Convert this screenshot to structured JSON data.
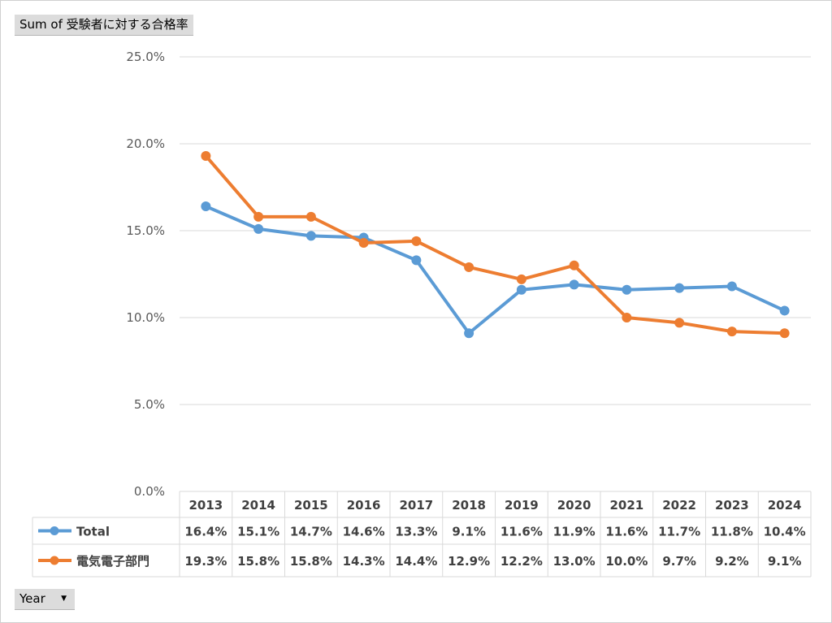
{
  "pivot": {
    "value_field": "Sum of 受験者に対する合格率",
    "axis_field": "Year",
    "dropdown_icon": "dropdown-arrow-icon"
  },
  "chart_data": {
    "type": "line",
    "x": [
      "2013",
      "2014",
      "2015",
      "2016",
      "2017",
      "2018",
      "2019",
      "2020",
      "2021",
      "2022",
      "2023",
      "2024"
    ],
    "ylim": [
      0,
      25
    ],
    "y_ticks": [
      "0.0%",
      "5.0%",
      "10.0%",
      "15.0%",
      "20.0%",
      "25.0%"
    ],
    "grid": true,
    "legend": "data-table",
    "series": [
      {
        "name": "Total",
        "color": "#5B9BD5",
        "values": [
          16.4,
          15.1,
          14.7,
          14.6,
          13.3,
          9.1,
          11.6,
          11.9,
          11.6,
          11.7,
          11.8,
          10.4
        ],
        "labels": [
          "16.4%",
          "15.1%",
          "14.7%",
          "14.6%",
          "13.3%",
          "9.1%",
          "11.6%",
          "11.9%",
          "11.6%",
          "11.7%",
          "11.8%",
          "10.4%"
        ]
      },
      {
        "name": "電気電子部門",
        "color": "#ED7D31",
        "values": [
          19.3,
          15.8,
          15.8,
          14.3,
          14.4,
          12.9,
          12.2,
          13.0,
          10.0,
          9.7,
          9.2,
          9.1
        ],
        "labels": [
          "19.3%",
          "15.8%",
          "15.8%",
          "14.3%",
          "14.4%",
          "12.9%",
          "12.2%",
          "13.0%",
          "10.0%",
          "9.7%",
          "9.2%",
          "9.1%"
        ]
      }
    ]
  }
}
